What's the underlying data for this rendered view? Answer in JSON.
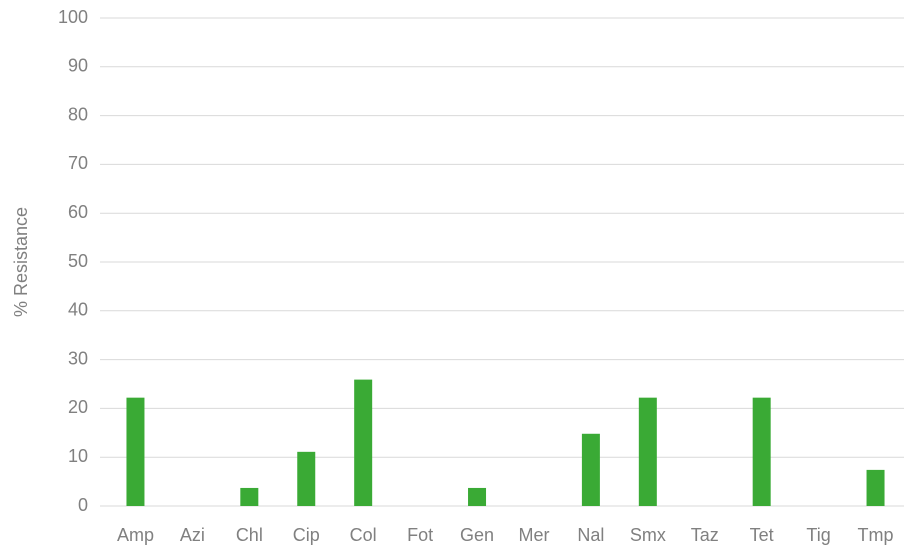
{
  "chart_data": {
    "type": "bar",
    "y_label": "% Resistance",
    "categories": [
      "Amp",
      "Azi",
      "Chl",
      "Cip",
      "Col",
      "Fot",
      "Gen",
      "Mer",
      "Nal",
      "Smx",
      "Taz",
      "Tet",
      "Tig",
      "Tmp"
    ],
    "values": [
      22.2,
      0,
      3.7,
      11.1,
      25.9,
      0,
      3.7,
      0,
      14.8,
      22.2,
      0,
      22.2,
      0,
      7.4
    ],
    "color": "#3aaa35",
    "ylim": [
      0,
      100
    ],
    "yticks": [
      0,
      10,
      20,
      30,
      40,
      50,
      60,
      70,
      80,
      90,
      100
    ],
    "grid": true
  }
}
